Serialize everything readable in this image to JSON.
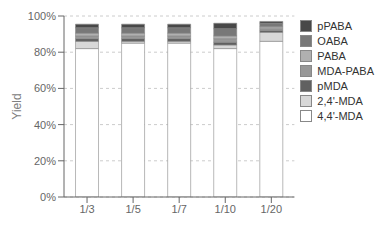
{
  "chart_data": {
    "type": "bar",
    "stacked": true,
    "categories": [
      "1/3",
      "1/5",
      "1/7",
      "1/10",
      "1/20"
    ],
    "series": [
      {
        "name": "4,4'-MDA",
        "color": "#ffffff",
        "values": [
          82,
          85,
          85,
          82,
          86
        ]
      },
      {
        "name": "2,4'-MDA",
        "color": "#d8d8d8",
        "values": [
          4,
          1,
          1,
          2,
          5
        ]
      },
      {
        "name": "pMDA",
        "color": "#606060",
        "values": [
          1.5,
          1.5,
          1.5,
          1.5,
          1
        ]
      },
      {
        "name": "MDA-PABA",
        "color": "#989898",
        "values": [
          1.5,
          1.5,
          1.5,
          2,
          1
        ]
      },
      {
        "name": "PABA",
        "color": "#b0b0b0",
        "values": [
          1.5,
          1.5,
          1.5,
          1.5,
          1
        ]
      },
      {
        "name": "OABA",
        "color": "#787878",
        "values": [
          3,
          3,
          3,
          4,
          2
        ]
      },
      {
        "name": "pPABA",
        "color": "#484848",
        "values": [
          2,
          2,
          2,
          3,
          1
        ]
      }
    ],
    "ylabel": "Yield",
    "ylim": [
      0,
      100
    ],
    "yticks": [
      {
        "value": 0,
        "label": "0%"
      },
      {
        "value": 20,
        "label": "20%"
      },
      {
        "value": 40,
        "label": "40%"
      },
      {
        "value": 60,
        "label": "60%"
      },
      {
        "value": 80,
        "label": "80%"
      },
      {
        "value": 100,
        "label": "100%"
      }
    ],
    "grid": true,
    "legend": "right"
  }
}
